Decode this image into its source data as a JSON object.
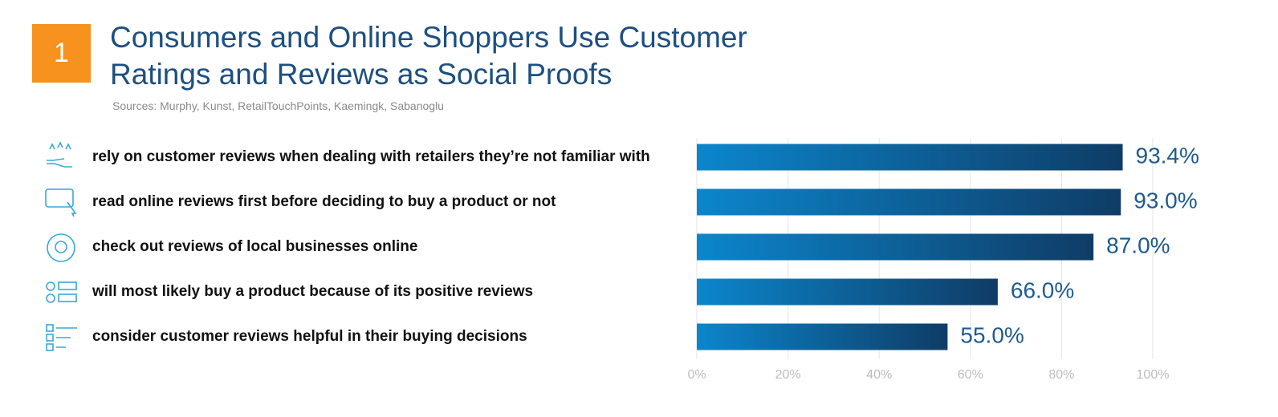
{
  "badge": "1",
  "chart_data": {
    "type": "bar",
    "orientation": "horizontal",
    "title": "Consumers and Online Shoppers Use Customer Ratings and Reviews as Social Proofs",
    "subtitle": "Sources: Murphy, Kunst, RetailTouchPoints, Kaemingk, Sabanoglu",
    "categories": [
      "rely on customer reviews when dealing with retailers they’re not familiar with",
      "read online reviews first before deciding to buy a product or not",
      "check out reviews of local businesses online",
      "will most likely buy a product because of its positive reviews",
      "consider customer reviews helpful in their buying decisions"
    ],
    "values": [
      93.4,
      93.0,
      87.0,
      66.0,
      55.0
    ],
    "value_labels": [
      "93.4%",
      "93.0%",
      "87.0%",
      "66.0%",
      "55.0%"
    ],
    "color": "#0b86cc",
    "color_end": "#0f3c66",
    "xlim": [
      0,
      100
    ],
    "xticks": [
      {
        "value": 0,
        "label": "0%"
      },
      {
        "value": 20,
        "label": "20%"
      },
      {
        "value": 40,
        "label": "40%"
      },
      {
        "value": 60,
        "label": "60%"
      },
      {
        "value": 80,
        "label": "80%"
      },
      {
        "value": 100,
        "label": "100%"
      }
    ],
    "grid": true
  }
}
